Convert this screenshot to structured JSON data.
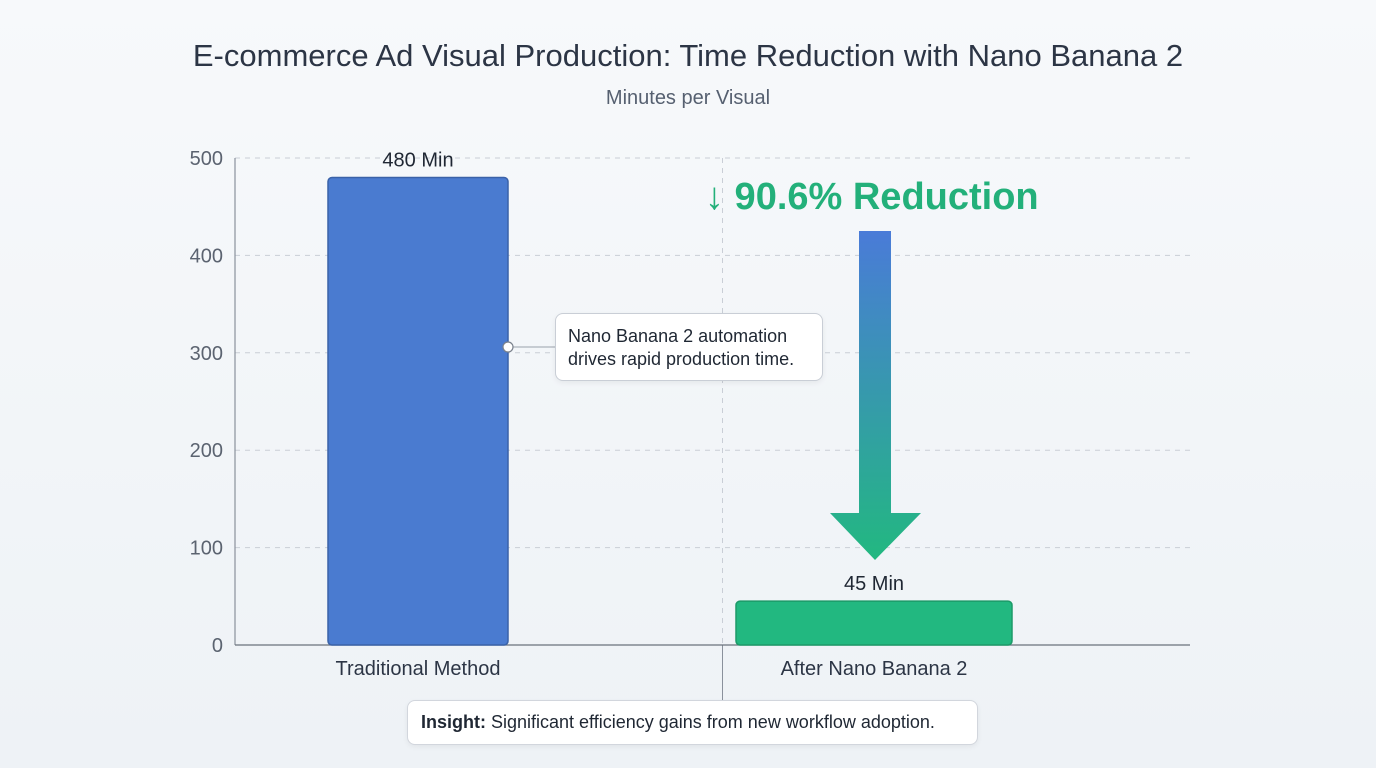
{
  "chart_data": {
    "type": "bar",
    "title": "E-commerce Ad Visual Production: Time Reduction with Nano Banana 2",
    "subtitle": "Minutes per Visual",
    "categories": [
      "Traditional Method",
      "After Nano Banana 2"
    ],
    "values": [
      480,
      45
    ],
    "data_labels": [
      "480 Min",
      "45 Min"
    ],
    "bar_colors": [
      "#4a7bd0",
      "#22b880"
    ],
    "ylim": [
      0,
      500
    ],
    "yticks": [
      0,
      100,
      200,
      300,
      400,
      500
    ],
    "grid": true,
    "annotations": {
      "reduction": "↓ 90.6% Reduction",
      "callout_lines": [
        "Nano Banana 2 automation",
        "drives rapid production time."
      ],
      "insight_label": "Insight:",
      "insight_text": " Significant efficiency gains from new workflow adoption."
    }
  },
  "colors": {
    "arrow_top": "#4a7bd8",
    "arrow_bottom": "#22b880",
    "reduction_text": "#23b07a",
    "axis": "#5b6370",
    "grid": "#c9ced6"
  }
}
